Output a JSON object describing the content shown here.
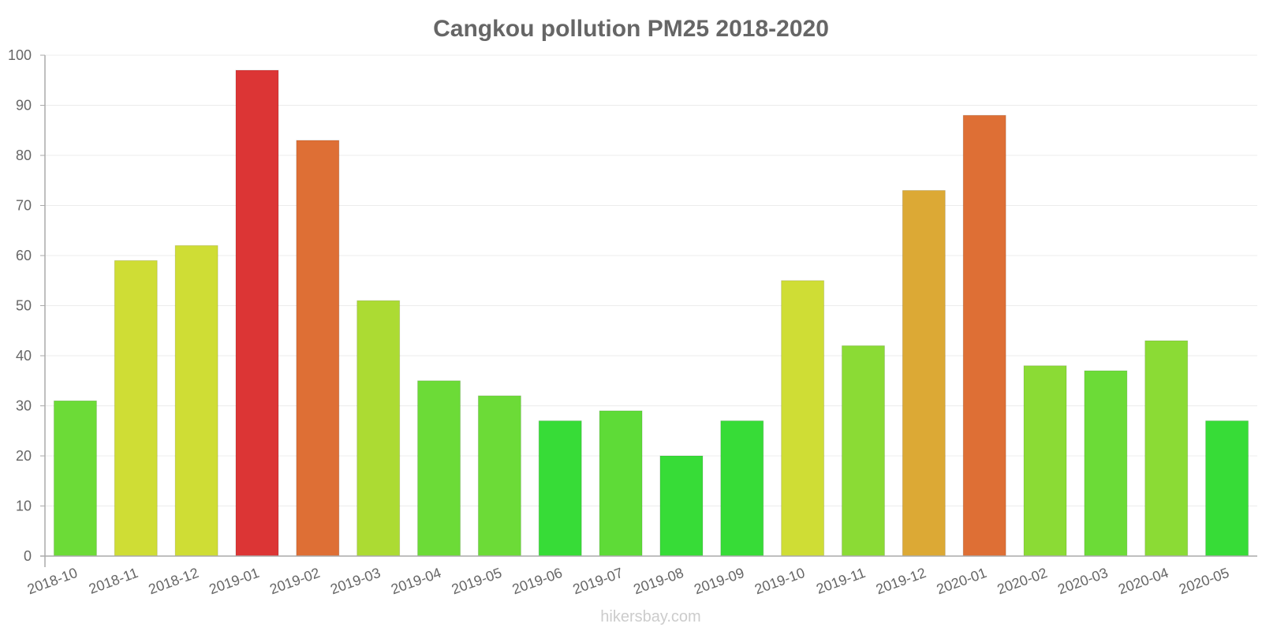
{
  "chart_data": {
    "type": "bar",
    "title": "Cangkou pollution PM25 2018-2020",
    "xlabel": "",
    "ylabel": "",
    "ylim": [
      0,
      100
    ],
    "yticks": [
      "0",
      "10",
      "20",
      "30",
      "40",
      "50",
      "60",
      "70",
      "80",
      "90",
      "100"
    ],
    "grid": true,
    "categories": [
      "2018-10",
      "2018-11",
      "2018-12",
      "2019-01",
      "2019-02",
      "2019-03",
      "2019-04",
      "2019-05",
      "2019-06",
      "2019-07",
      "2019-08",
      "2019-09",
      "2019-10",
      "2019-11",
      "2019-12",
      "2020-01",
      "2020-02",
      "2020-03",
      "2020-04",
      "2020-05"
    ],
    "values": [
      31,
      59,
      62,
      97,
      83,
      51,
      35,
      32,
      27,
      29,
      20,
      27,
      55,
      42,
      73,
      88,
      38,
      37,
      43,
      27
    ],
    "colors": [
      "#6cdb37",
      "#cfdd35",
      "#cfdd35",
      "#dc3535",
      "#de6f35",
      "#acdb33",
      "#6cdb37",
      "#6cdb37",
      "#37dc37",
      "#5edb37",
      "#37dc37",
      "#37dc37",
      "#cfdd35",
      "#8bdb35",
      "#dca935",
      "#de6f35",
      "#8bdb35",
      "#6cdb37",
      "#8bdb35",
      "#37dc37"
    ]
  },
  "watermark": "hikersbay.com"
}
